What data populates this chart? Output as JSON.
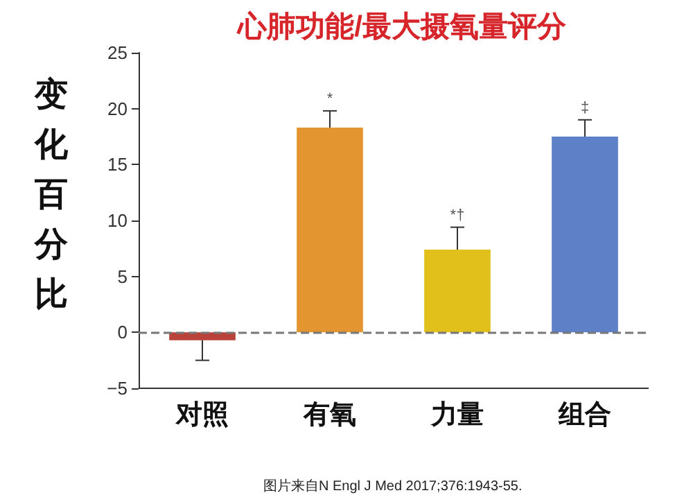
{
  "chart_data": {
    "type": "bar",
    "title": "心肺功能/最大摄氧量评分",
    "ylabel": "变化百分比",
    "categories": [
      "对照",
      "有氧",
      "力量",
      "组合"
    ],
    "values": [
      -0.7,
      18.3,
      7.4,
      17.5
    ],
    "colors": [
      "#b9433a",
      "#e3962f",
      "#e2c01c",
      "#5d80c7"
    ],
    "errors": [
      1.8,
      1.5,
      2.0,
      1.5
    ],
    "ylim": [
      -5,
      25
    ],
    "yticks": [
      -5,
      0,
      5,
      10,
      15,
      20,
      25
    ],
    "grid": false,
    "ref_lines": [
      {
        "axis": "y",
        "value": 0,
        "line_style": "dashed",
        "color": "#777777"
      }
    ],
    "annotations": [
      {
        "text": "*",
        "x": "有氧",
        "y": 19.8
      },
      {
        "text": "*†",
        "x": "力量",
        "y": 9.4
      },
      {
        "text": "‡",
        "x": "组合",
        "y": 19.0
      },
      "图片来自N Engl J Med 2017;376:1943-55."
    ]
  }
}
